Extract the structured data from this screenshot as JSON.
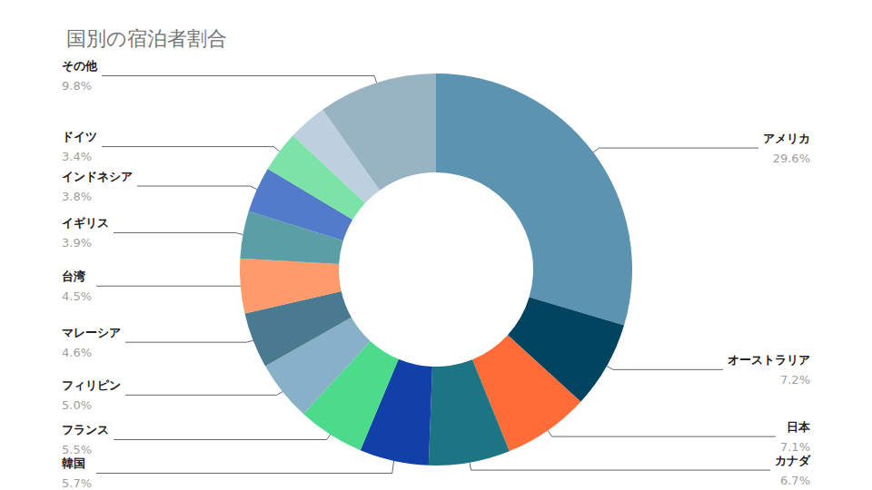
{
  "chart_data": {
    "type": "donut",
    "title": "国別の宿泊者割合",
    "categories": [
      "アメリカ",
      "オーストラリア",
      "日本",
      "カナダ",
      "韓国",
      "フランス",
      "フィリピン",
      "マレーシア",
      "台湾",
      "イギリス",
      "インドネシア",
      "ドイツ",
      null,
      "その他"
    ],
    "values": [
      29.6,
      7.2,
      7.1,
      6.7,
      5.7,
      5.5,
      5.0,
      4.6,
      4.5,
      3.9,
      3.8,
      3.4,
      3.2,
      9.8
    ],
    "value_labels": [
      "29.6%",
      "7.2%",
      "7.1%",
      "6.7%",
      "5.7%",
      "5.5%",
      "5.0%",
      "4.6%",
      "4.5%",
      "3.9%",
      "3.8%",
      "3.4%",
      null,
      "9.8%"
    ],
    "colors": [
      "#5b93b1",
      "#00445f",
      "#ff6c37",
      "#1d7483",
      "#1040a8",
      "#4cdb8a",
      "#88b1c9",
      "#4a7a8f",
      "#ff9a6b",
      "#5a9ea6",
      "#527cca",
      "#7be3a8",
      "#bcd0dd",
      "#98b4c2"
    ],
    "data_labels": true
  }
}
